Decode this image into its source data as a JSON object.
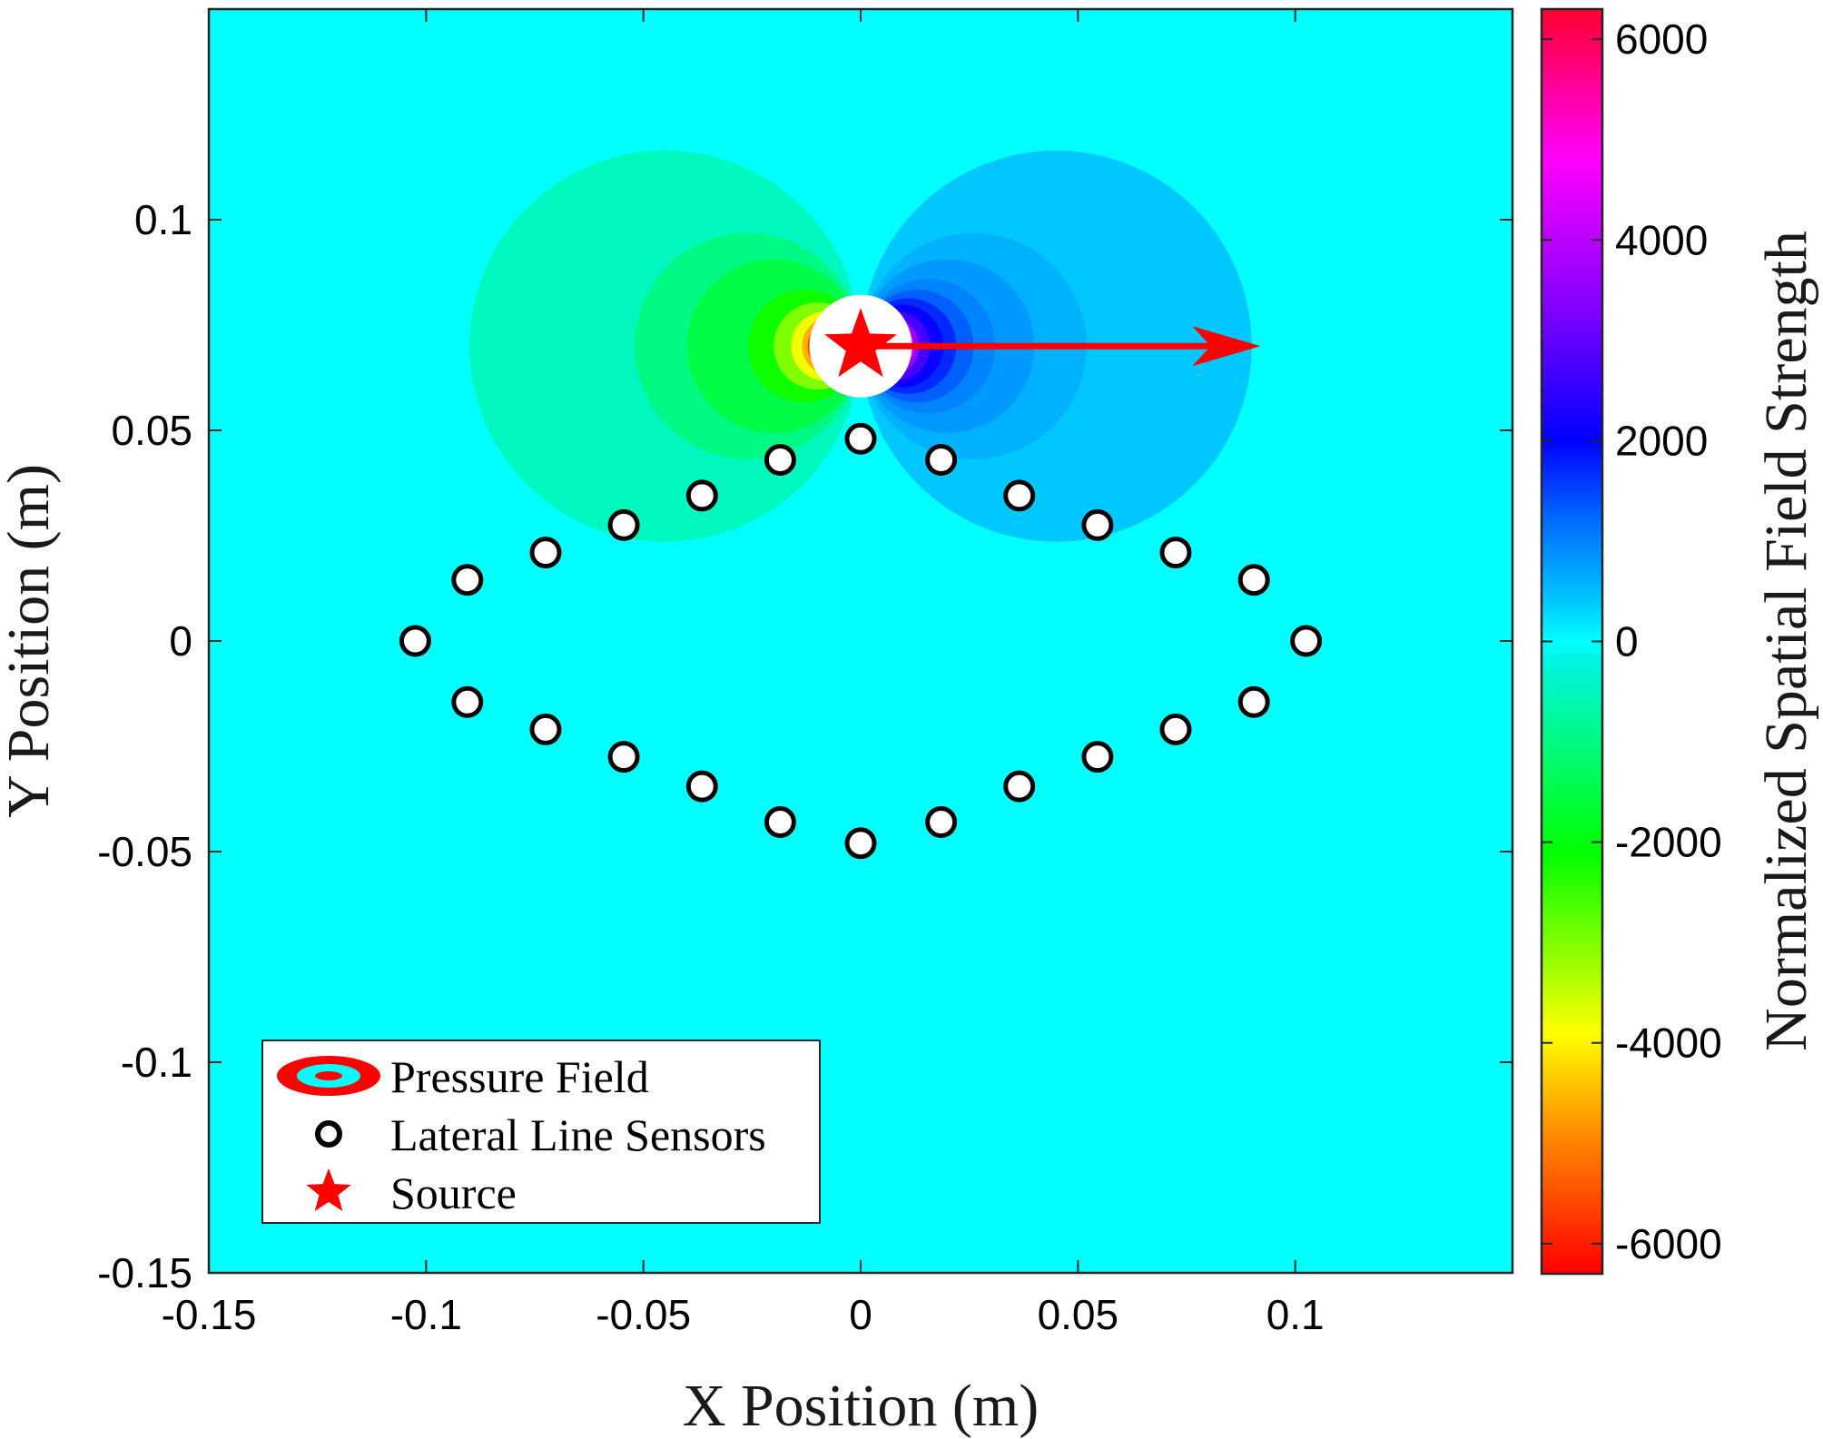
{
  "chart_data": {
    "type": "heatmap",
    "subtype": "contour field with sensor scatter and vector",
    "xlabel": "X Position (m)",
    "ylabel": "Y Position (m)",
    "colorbar_label": "Normalized Spatial Field Strength",
    "xlim": [
      -0.15,
      0.15
    ],
    "ylim": [
      -0.15,
      0.15
    ],
    "xticks": [
      -0.15,
      -0.1,
      -0.05,
      0,
      0.05,
      0.1
    ],
    "yticks": [
      -0.15,
      -0.1,
      -0.05,
      0,
      0.05,
      0.1
    ],
    "xtick_labels": [
      "-0.15",
      "-0.1",
      "-0.05",
      "0",
      "0.05",
      "0.1"
    ],
    "ytick_labels": [
      "-0.15",
      "-0.1",
      "-0.05",
      "0",
      "0.05",
      "0.1"
    ],
    "colorbar_range": [
      -6300,
      6300
    ],
    "colorbar_ticks": [
      6000,
      4000,
      2000,
      0,
      -2000,
      -4000,
      -6000
    ],
    "colorbar_tick_labels": [
      "6000",
      "4000",
      "2000",
      "0",
      "-2000",
      "-4000",
      "-6000"
    ],
    "colormap_stops": [
      {
        "value": -6300,
        "color": "#ff0000"
      },
      {
        "value": -4900,
        "color": "#ff8c00"
      },
      {
        "value": -3900,
        "color": "#ffff00"
      },
      {
        "value": -2100,
        "color": "#00ff00"
      },
      {
        "value": -200,
        "color": "#00f5e0"
      },
      {
        "value": 0,
        "color": "#00ffff"
      },
      {
        "value": 400,
        "color": "#00c8ff"
      },
      {
        "value": 1300,
        "color": "#0060ff"
      },
      {
        "value": 2000,
        "color": "#0000ff"
      },
      {
        "value": 3300,
        "color": "#8000ff"
      },
      {
        "value": 4800,
        "color": "#ff00ff"
      },
      {
        "value": 6300,
        "color": "#ff0030"
      }
    ],
    "background_value": 0,
    "source": {
      "name": "Source",
      "x": 0,
      "y": 0.07
    },
    "velocity_vector": {
      "from": [
        0,
        0.07
      ],
      "to": [
        0.092,
        0.07
      ],
      "color": "#ff0000"
    },
    "field_levels": [
      {
        "side": "negative",
        "value": -500,
        "reach": 0.09
      },
      {
        "side": "negative",
        "value": -1000,
        "reach": 0.052
      },
      {
        "side": "negative",
        "value": -1500,
        "reach": 0.04
      },
      {
        "side": "negative",
        "value": -2200,
        "reach": 0.026
      },
      {
        "side": "negative",
        "value": -3000,
        "reach": 0.02
      },
      {
        "side": "negative",
        "value": -3800,
        "reach": 0.016
      },
      {
        "side": "negative",
        "value": -4600,
        "reach": 0.0135
      },
      {
        "side": "negative",
        "value": -5600,
        "reach": 0.0122
      },
      {
        "side": "positive",
        "value": 400,
        "reach": 0.09
      },
      {
        "side": "positive",
        "value": 600,
        "reach": 0.052
      },
      {
        "side": "positive",
        "value": 800,
        "reach": 0.04
      },
      {
        "side": "positive",
        "value": 1000,
        "reach": 0.031
      },
      {
        "side": "positive",
        "value": 1300,
        "reach": 0.026
      },
      {
        "side": "positive",
        "value": 1700,
        "reach": 0.022
      },
      {
        "side": "positive",
        "value": 2100,
        "reach": 0.019
      },
      {
        "side": "positive",
        "value": 2700,
        "reach": 0.016
      },
      {
        "side": "positive",
        "value": 3600,
        "reach": 0.0135
      },
      {
        "side": "positive",
        "value": 4800,
        "reach": 0.0122
      }
    ],
    "sensors": {
      "name": "Lateral Line Sensors",
      "x": [
        0,
        0.0185,
        0.0365,
        0.0545,
        0.0725,
        0.0905,
        0.1025,
        0.0905,
        0.0725,
        0.0545,
        0.0365,
        0.0185,
        0,
        -0.0185,
        -0.0365,
        -0.0545,
        -0.0725,
        -0.0905,
        -0.1025,
        -0.0905,
        -0.0725,
        -0.0545,
        -0.0365,
        -0.0185
      ],
      "y": [
        0.048,
        0.043,
        0.0345,
        0.0275,
        0.021,
        0.0145,
        0,
        -0.0145,
        -0.021,
        -0.0275,
        -0.0345,
        -0.043,
        -0.048,
        -0.043,
        -0.0345,
        -0.0275,
        -0.021,
        -0.0145,
        0,
        0.0145,
        0.021,
        0.0275,
        0.0345,
        0.043
      ]
    },
    "legend": {
      "position": "bottom-left",
      "entries": [
        {
          "label": "Pressure Field",
          "marker": "filled-ellipse"
        },
        {
          "label": "Lateral Line Sensors",
          "marker": "open-circle"
        },
        {
          "label": "Source",
          "marker": "star"
        }
      ]
    }
  },
  "colors": {
    "accent": "#ff0000",
    "field_background": "#00ffff",
    "sensor_fill": "#ffffff",
    "sensor_stroke": "#000000"
  }
}
